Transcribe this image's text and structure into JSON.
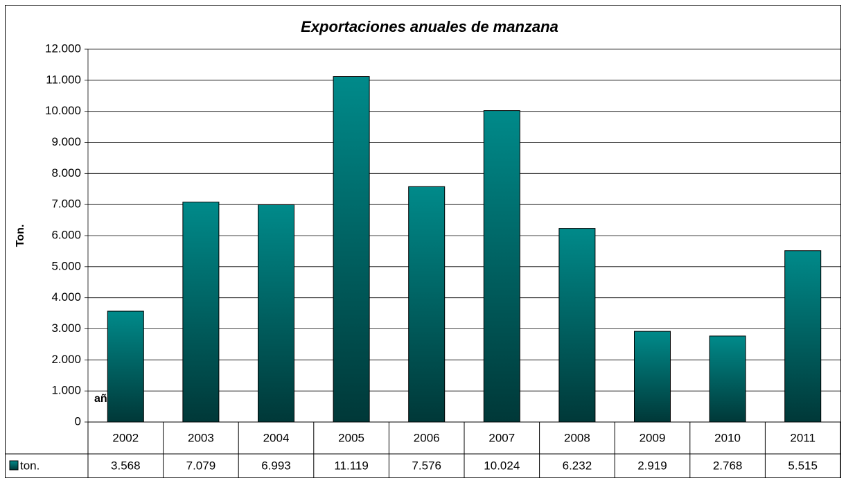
{
  "chart_data": {
    "type": "bar",
    "title": "Exportaciones anuales de manzana",
    "y_label": "Ton.",
    "x_label": "año",
    "categories": [
      "2002",
      "2003",
      "2004",
      "2005",
      "2006",
      "2007",
      "2008",
      "2009",
      "2010",
      "2011"
    ],
    "series": [
      {
        "name": "ton.",
        "color": "#008a8a",
        "values": [
          3568,
          7079,
          6993,
          11119,
          7576,
          10024,
          6232,
          2919,
          2768,
          5515
        ],
        "value_labels": [
          "3.568",
          "7.079",
          "6.993",
          "11.119",
          "7.576",
          "10.024",
          "6.232",
          "2.919",
          "2.768",
          "5.515"
        ]
      }
    ],
    "ylim": [
      0,
      12000
    ],
    "yticks": [
      0,
      {
        "value": 1000,
        "label": "1.000"
      },
      {
        "value": 2000,
        "label": "2.000"
      },
      {
        "value": 3000,
        "label": "3.000"
      },
      {
        "value": 4000,
        "label": "4.000"
      },
      {
        "value": 5000,
        "label": "5.000"
      },
      {
        "value": 6000,
        "label": "6.000"
      },
      {
        "value": 7000,
        "label": "7.000"
      },
      {
        "value": 8000,
        "label": "8.000"
      },
      {
        "value": 9000,
        "label": "9.000"
      },
      {
        "value": 10000,
        "label": "10.000"
      },
      {
        "value": 11000,
        "label": "11.000"
      },
      {
        "value": 12000,
        "label": "12.000"
      }
    ],
    "grid": true
  }
}
